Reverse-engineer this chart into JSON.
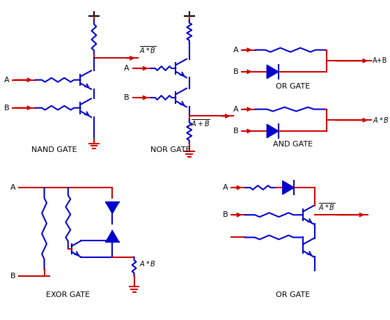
{
  "red": "#cc0000",
  "blue": "#0000cc",
  "black": "#000000",
  "lw": 1.5,
  "titles": {
    "nand": "NAND GATE",
    "nor": "NOR GATE",
    "or_top": "OR GATE",
    "and": "AND GATE",
    "exor": "EXOR GATE",
    "or_bot": "OR GATE"
  }
}
